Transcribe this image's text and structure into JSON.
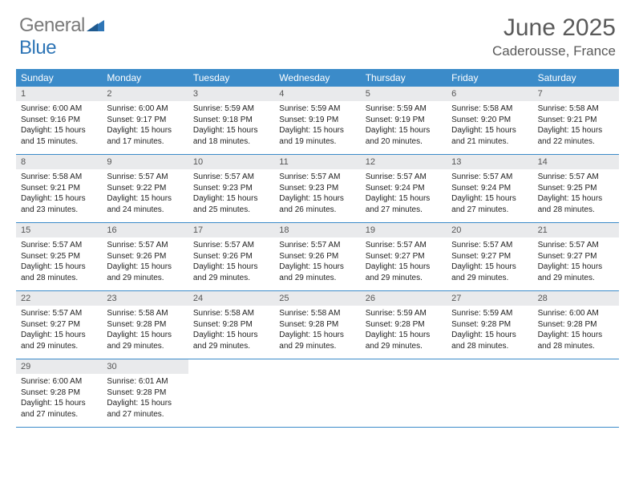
{
  "logo": {
    "textGray": "General",
    "textBlue": "Blue"
  },
  "title": "June 2025",
  "location": "Caderousse, France",
  "colors": {
    "headerBg": "#3b8bc9",
    "headerText": "#ffffff",
    "dayNumBg": "#e9eaec",
    "rowBorder": "#3b8bc9",
    "titleColor": "#5a5a5a"
  },
  "layout": {
    "cols": 7,
    "rows": 5,
    "cellWidth": 107
  },
  "weekdays": [
    "Sunday",
    "Monday",
    "Tuesday",
    "Wednesday",
    "Thursday",
    "Friday",
    "Saturday"
  ],
  "days": [
    {
      "n": 1,
      "sr": "6:00 AM",
      "ss": "9:16 PM",
      "dl": "15 hours and 15 minutes."
    },
    {
      "n": 2,
      "sr": "6:00 AM",
      "ss": "9:17 PM",
      "dl": "15 hours and 17 minutes."
    },
    {
      "n": 3,
      "sr": "5:59 AM",
      "ss": "9:18 PM",
      "dl": "15 hours and 18 minutes."
    },
    {
      "n": 4,
      "sr": "5:59 AM",
      "ss": "9:19 PM",
      "dl": "15 hours and 19 minutes."
    },
    {
      "n": 5,
      "sr": "5:59 AM",
      "ss": "9:19 PM",
      "dl": "15 hours and 20 minutes."
    },
    {
      "n": 6,
      "sr": "5:58 AM",
      "ss": "9:20 PM",
      "dl": "15 hours and 21 minutes."
    },
    {
      "n": 7,
      "sr": "5:58 AM",
      "ss": "9:21 PM",
      "dl": "15 hours and 22 minutes."
    },
    {
      "n": 8,
      "sr": "5:58 AM",
      "ss": "9:21 PM",
      "dl": "15 hours and 23 minutes."
    },
    {
      "n": 9,
      "sr": "5:57 AM",
      "ss": "9:22 PM",
      "dl": "15 hours and 24 minutes."
    },
    {
      "n": 10,
      "sr": "5:57 AM",
      "ss": "9:23 PM",
      "dl": "15 hours and 25 minutes."
    },
    {
      "n": 11,
      "sr": "5:57 AM",
      "ss": "9:23 PM",
      "dl": "15 hours and 26 minutes."
    },
    {
      "n": 12,
      "sr": "5:57 AM",
      "ss": "9:24 PM",
      "dl": "15 hours and 27 minutes."
    },
    {
      "n": 13,
      "sr": "5:57 AM",
      "ss": "9:24 PM",
      "dl": "15 hours and 27 minutes."
    },
    {
      "n": 14,
      "sr": "5:57 AM",
      "ss": "9:25 PM",
      "dl": "15 hours and 28 minutes."
    },
    {
      "n": 15,
      "sr": "5:57 AM",
      "ss": "9:25 PM",
      "dl": "15 hours and 28 minutes."
    },
    {
      "n": 16,
      "sr": "5:57 AM",
      "ss": "9:26 PM",
      "dl": "15 hours and 29 minutes."
    },
    {
      "n": 17,
      "sr": "5:57 AM",
      "ss": "9:26 PM",
      "dl": "15 hours and 29 minutes."
    },
    {
      "n": 18,
      "sr": "5:57 AM",
      "ss": "9:26 PM",
      "dl": "15 hours and 29 minutes."
    },
    {
      "n": 19,
      "sr": "5:57 AM",
      "ss": "9:27 PM",
      "dl": "15 hours and 29 minutes."
    },
    {
      "n": 20,
      "sr": "5:57 AM",
      "ss": "9:27 PM",
      "dl": "15 hours and 29 minutes."
    },
    {
      "n": 21,
      "sr": "5:57 AM",
      "ss": "9:27 PM",
      "dl": "15 hours and 29 minutes."
    },
    {
      "n": 22,
      "sr": "5:57 AM",
      "ss": "9:27 PM",
      "dl": "15 hours and 29 minutes."
    },
    {
      "n": 23,
      "sr": "5:58 AM",
      "ss": "9:28 PM",
      "dl": "15 hours and 29 minutes."
    },
    {
      "n": 24,
      "sr": "5:58 AM",
      "ss": "9:28 PM",
      "dl": "15 hours and 29 minutes."
    },
    {
      "n": 25,
      "sr": "5:58 AM",
      "ss": "9:28 PM",
      "dl": "15 hours and 29 minutes."
    },
    {
      "n": 26,
      "sr": "5:59 AM",
      "ss": "9:28 PM",
      "dl": "15 hours and 29 minutes."
    },
    {
      "n": 27,
      "sr": "5:59 AM",
      "ss": "9:28 PM",
      "dl": "15 hours and 28 minutes."
    },
    {
      "n": 28,
      "sr": "6:00 AM",
      "ss": "9:28 PM",
      "dl": "15 hours and 28 minutes."
    },
    {
      "n": 29,
      "sr": "6:00 AM",
      "ss": "9:28 PM",
      "dl": "15 hours and 27 minutes."
    },
    {
      "n": 30,
      "sr": "6:01 AM",
      "ss": "9:28 PM",
      "dl": "15 hours and 27 minutes."
    }
  ],
  "labels": {
    "sunrise": "Sunrise:",
    "sunset": "Sunset:",
    "daylight": "Daylight:"
  }
}
